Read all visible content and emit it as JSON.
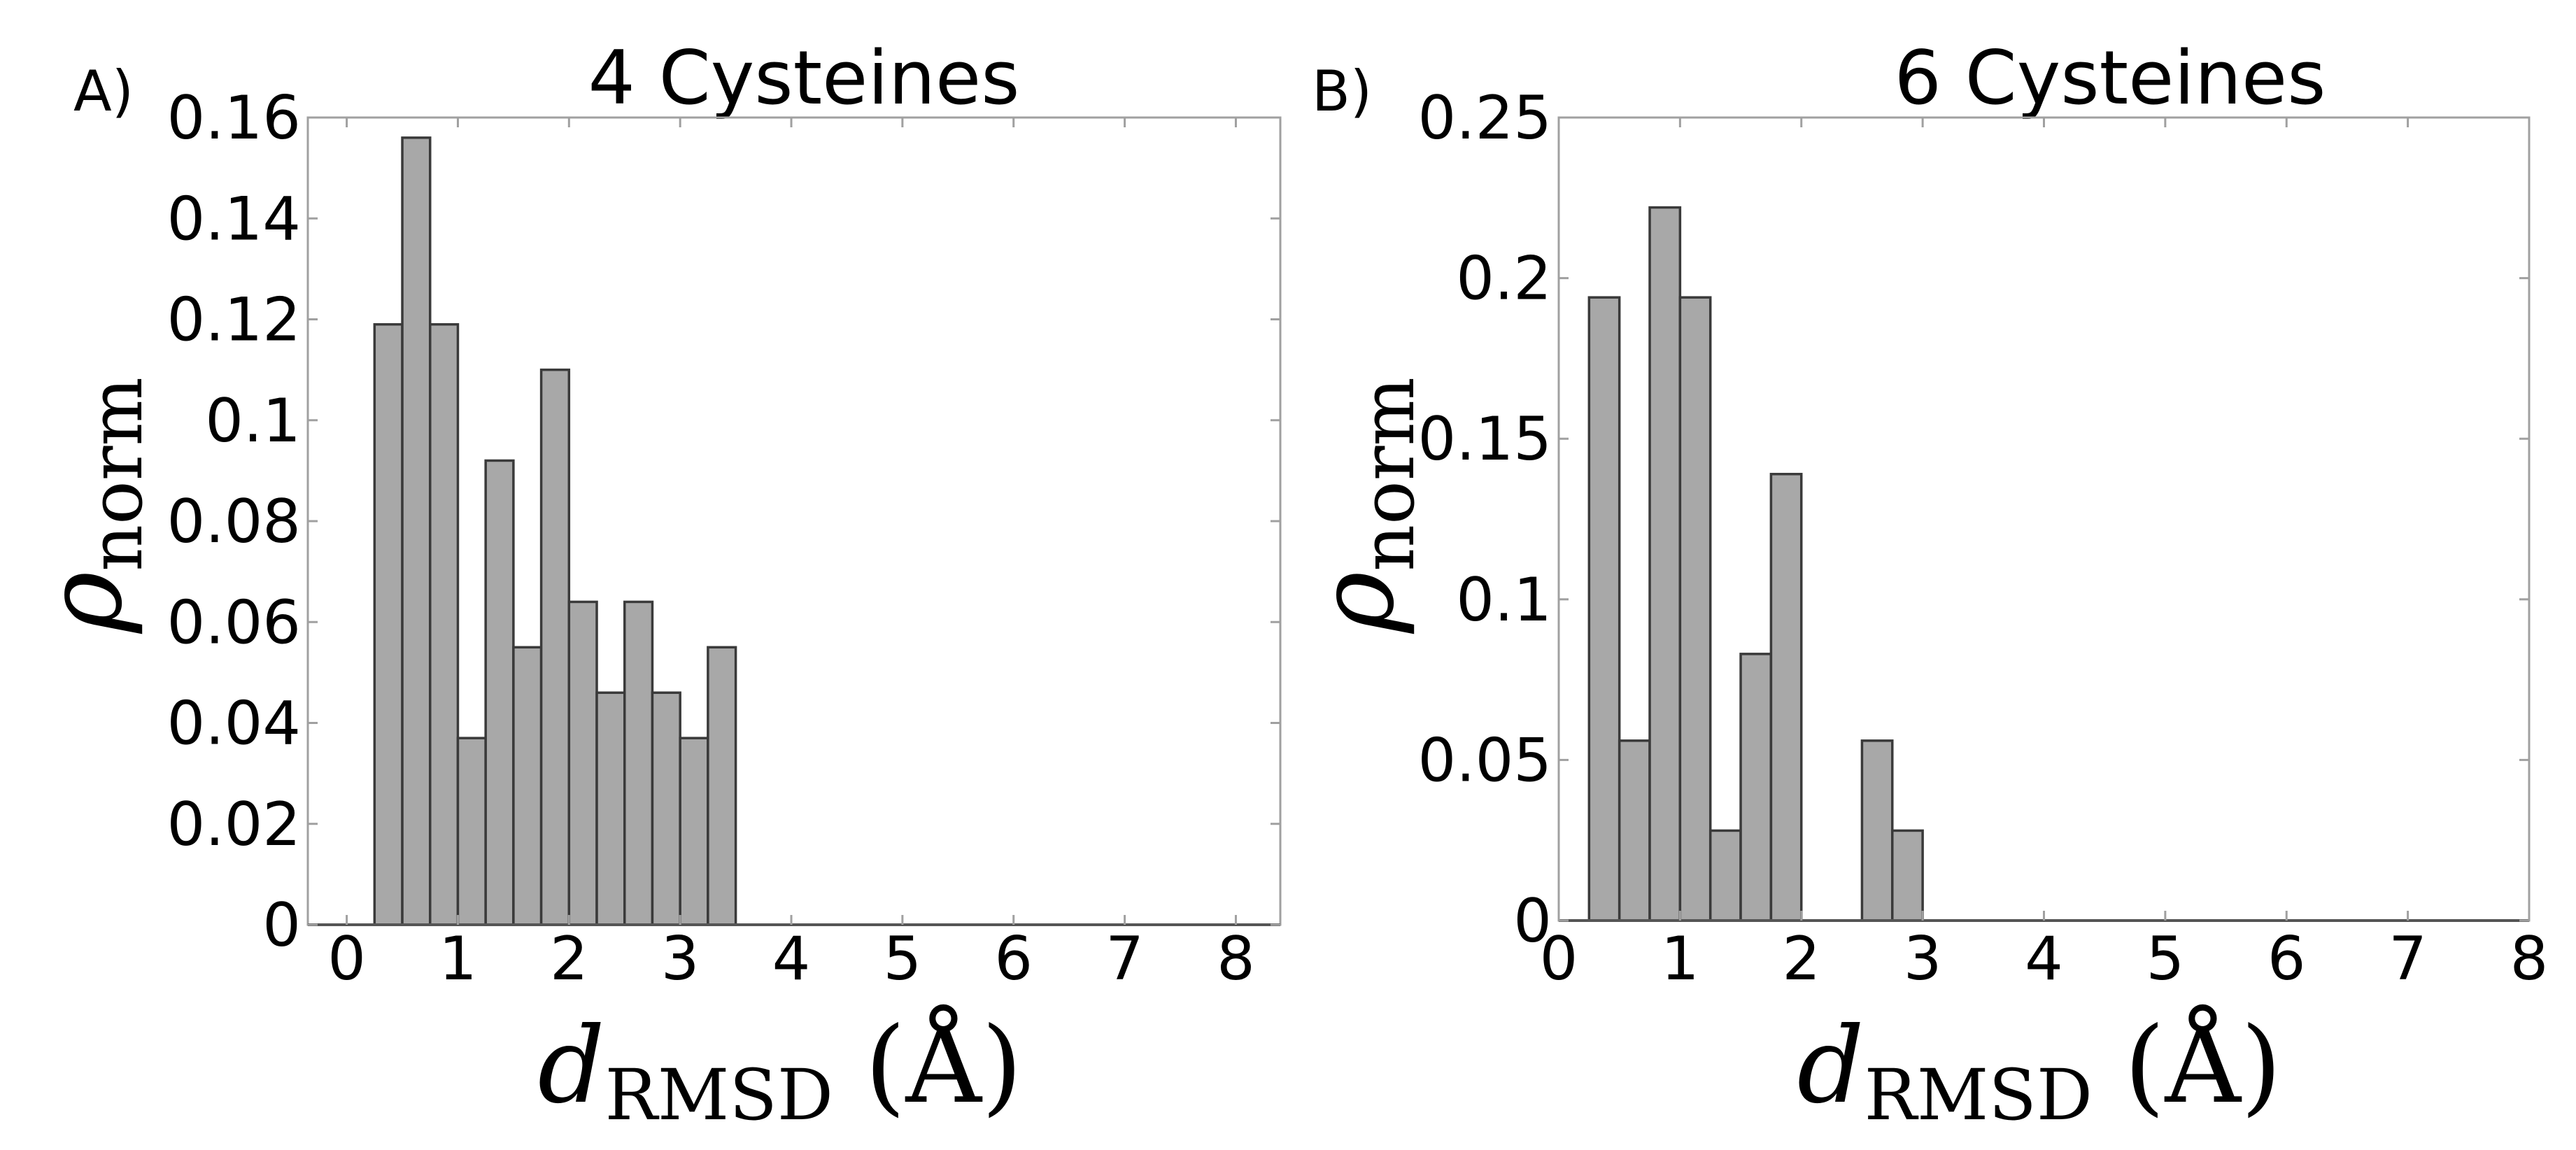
{
  "colors": {
    "bar_fill": "#a8a8a8",
    "bar_edge": "#3a3a3a",
    "frame": "#a0a0a0"
  },
  "chart_data": [
    {
      "type": "bar",
      "panel_label": "A)",
      "title": "4 Cysteines",
      "xlabel": "d",
      "xlabel_sub": "RMSD",
      "xlabel_unit": "(Å)",
      "ylabel": "ρ",
      "ylabel_sub": "norm",
      "xlim": [
        -0.35,
        8.4
      ],
      "ylim": [
        0,
        0.16
      ],
      "xticks": [
        0,
        1,
        2,
        3,
        4,
        5,
        6,
        7,
        8
      ],
      "xtick_labels": [
        "0",
        "1",
        "2",
        "3",
        "4",
        "5",
        "6",
        "7",
        "8"
      ],
      "yticks": [
        0,
        0.02,
        0.04,
        0.06,
        0.08,
        0.1,
        0.12,
        0.14,
        0.16
      ],
      "ytick_labels": [
        "0",
        "0.02",
        "0.04",
        "0.06",
        "0.08",
        "0.1",
        "0.12",
        "0.14",
        "0.16"
      ],
      "bin_width": 0.25,
      "bin_edges_start": [
        0.25,
        0.5,
        0.75,
        1.0,
        1.25,
        1.5,
        1.75,
        2.0,
        2.25,
        2.5,
        2.75,
        3.0,
        3.25
      ],
      "values": [
        0.119,
        0.156,
        0.119,
        0.037,
        0.092,
        0.055,
        0.11,
        0.064,
        0.046,
        0.064,
        0.046,
        0.037,
        0.055
      ],
      "grid": false
    },
    {
      "type": "bar",
      "panel_label": "B)",
      "title": "6 Cysteines",
      "xlabel": "d",
      "xlabel_sub": "RMSD",
      "xlabel_unit": "(Å)",
      "ylabel": "ρ",
      "ylabel_sub": "norm",
      "xlim": [
        0,
        8
      ],
      "ylim": [
        0,
        0.25
      ],
      "xticks": [
        0,
        1,
        2,
        3,
        4,
        5,
        6,
        7,
        8
      ],
      "xtick_labels": [
        "0",
        "1",
        "2",
        "3",
        "4",
        "5",
        "6",
        "7",
        "8"
      ],
      "yticks": [
        0,
        0.05,
        0.1,
        0.15,
        0.2,
        0.25
      ],
      "ytick_labels": [
        "0",
        "0.05",
        "0.1",
        "0.15",
        "0.2",
        "0.25"
      ],
      "bin_width": 0.25,
      "bin_edges_start": [
        0.25,
        0.5,
        0.75,
        1.0,
        1.25,
        1.5,
        1.75,
        2.0,
        2.25,
        2.5,
        2.75
      ],
      "values": [
        0.194,
        0.056,
        0.222,
        0.194,
        0.028,
        0.083,
        0.139,
        0,
        0,
        0.056,
        0.028
      ],
      "grid": false
    }
  ]
}
